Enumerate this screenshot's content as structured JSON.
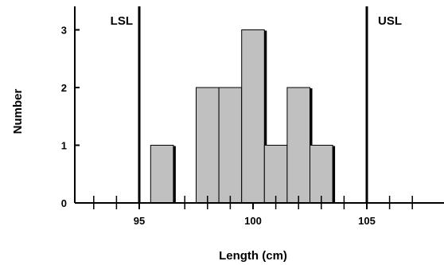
{
  "chart_data": {
    "type": "bar",
    "subtype": "histogram",
    "xlabel": "Length (cm)",
    "ylabel": "Number",
    "xlim": [
      92,
      107.8
    ],
    "ylim": [
      0,
      3.4
    ],
    "x_tick_labels": [
      {
        "value": 95,
        "label": "95"
      },
      {
        "value": 100,
        "label": "100"
      },
      {
        "value": 105,
        "label": "105"
      }
    ],
    "x_minor_ticks": [
      93,
      94,
      97,
      98,
      99,
      101,
      102,
      103,
      104,
      106,
      107
    ],
    "y_ticks": [
      {
        "value": 0,
        "label": "0"
      },
      {
        "value": 1,
        "label": "1"
      },
      {
        "value": 2,
        "label": "2"
      },
      {
        "value": 3,
        "label": "3"
      }
    ],
    "bins": [
      {
        "start": 95.5,
        "end": 96.5,
        "count": 1
      },
      {
        "start": 97.5,
        "end": 98.5,
        "count": 2
      },
      {
        "start": 98.5,
        "end": 99.5,
        "count": 2
      },
      {
        "start": 99.5,
        "end": 100.5,
        "count": 3
      },
      {
        "start": 100.5,
        "end": 101.5,
        "count": 1
      },
      {
        "start": 101.5,
        "end": 102.5,
        "count": 2
      },
      {
        "start": 102.5,
        "end": 103.5,
        "count": 1
      }
    ],
    "spec_limits": [
      {
        "label": "LSL",
        "value": 95
      },
      {
        "label": "USL",
        "value": 105
      }
    ],
    "bar_color": "#c0c0c0",
    "line_color": "#000000",
    "grid": false,
    "legend": "none"
  }
}
